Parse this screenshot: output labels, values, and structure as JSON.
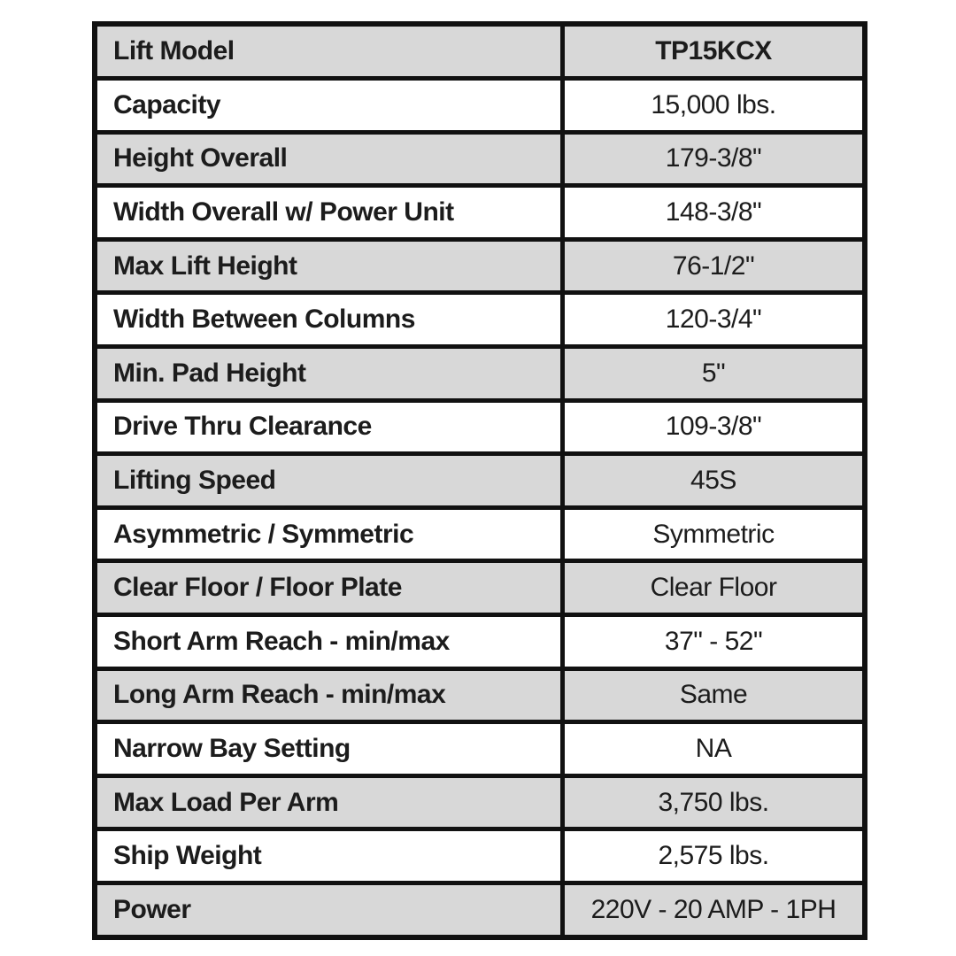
{
  "colors": {
    "row_shaded_bg": "#d8d8d8",
    "row_plain_bg": "#ffffff",
    "border": "#111111",
    "text": "#1c1c1c"
  },
  "table": {
    "rows": [
      {
        "label": "Lift Model",
        "value": "TP15KCX",
        "shaded": true,
        "value_bold": true
      },
      {
        "label": "Capacity",
        "value": "15,000 lbs.",
        "shaded": false,
        "value_bold": false
      },
      {
        "label": "Height Overall",
        "value": "179-3/8\"",
        "shaded": true,
        "value_bold": false
      },
      {
        "label": "Width Overall w/ Power Unit",
        "value": "148-3/8\"",
        "shaded": false,
        "value_bold": false
      },
      {
        "label": "Max Lift Height",
        "value": "76-1/2\"",
        "shaded": true,
        "value_bold": false
      },
      {
        "label": "Width Between Columns",
        "value": "120-3/4\"",
        "shaded": false,
        "value_bold": false
      },
      {
        "label": "Min. Pad Height",
        "value": "5\"",
        "shaded": true,
        "value_bold": false
      },
      {
        "label": "Drive Thru Clearance",
        "value": "109-3/8\"",
        "shaded": false,
        "value_bold": false
      },
      {
        "label": "Lifting Speed",
        "value": "45S",
        "shaded": true,
        "value_bold": false
      },
      {
        "label": "Asymmetric / Symmetric",
        "value": "Symmetric",
        "shaded": false,
        "value_bold": false
      },
      {
        "label": "Clear Floor / Floor Plate",
        "value": "Clear Floor",
        "shaded": true,
        "value_bold": false
      },
      {
        "label": "Short Arm Reach - min/max",
        "value": "37\" - 52\"",
        "shaded": false,
        "value_bold": false
      },
      {
        "label": "Long Arm Reach - min/max",
        "value": "Same",
        "shaded": true,
        "value_bold": false
      },
      {
        "label": "Narrow Bay Setting",
        "value": "NA",
        "shaded": false,
        "value_bold": false
      },
      {
        "label": "Max Load Per Arm",
        "value": "3,750 lbs.",
        "shaded": true,
        "value_bold": false
      },
      {
        "label": "Ship Weight",
        "value": "2,575 lbs.",
        "shaded": false,
        "value_bold": false
      },
      {
        "label": "Power",
        "value": "220V - 20 AMP - 1PH",
        "shaded": true,
        "value_bold": false
      }
    ]
  }
}
